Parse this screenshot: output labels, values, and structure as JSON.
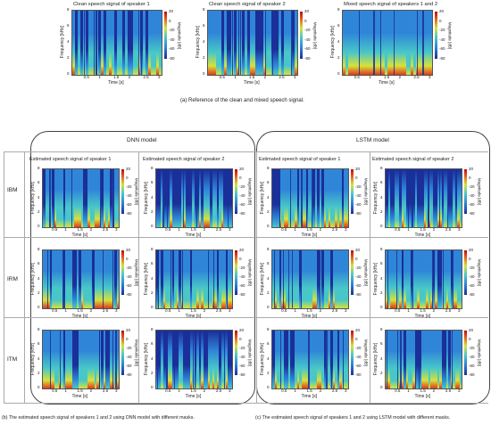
{
  "chart_data": [
    {
      "type": "heatmap",
      "panel_titles": [
        "Clean speech signal of speaker 1",
        "Clean speech signal of speaker 2",
        "Mixed speech signal of speakers 1 and 2"
      ],
      "xlabel": "Time [s]",
      "ylabel": "Frequency [kHz]",
      "xticks": [
        "0.5",
        "1",
        "1.5",
        "2",
        "2.5",
        "3"
      ],
      "yticks": [
        "0",
        "2",
        "4",
        "6",
        "8"
      ],
      "xlim": [
        0,
        3
      ],
      "ylim": [
        0,
        8
      ],
      "colorbar_label": "Magnitude [dB]",
      "colorbar_ticks": [
        "20",
        "0",
        "-20",
        "-40",
        "-60",
        "-80"
      ],
      "colorbar_range": [
        -80,
        20
      ],
      "caption": "(a) Reference of the clean and mixed speech signal."
    },
    {
      "type": "heatmap",
      "model": "DNN model",
      "column_titles": [
        "Estimated speech signal of speaker 1",
        "Estimated speech signal of speaker 2"
      ],
      "rows": [
        "IBM",
        "IRM",
        "ITM"
      ],
      "xlabel": "Time [s]",
      "ylabel": "Frequency [kHz]",
      "xticks": [
        "0.5",
        "1",
        "1.5",
        "2",
        "2.5",
        "3"
      ],
      "yticks": [
        "0",
        "2",
        "4",
        "6",
        "8"
      ],
      "colorbar_label": "Magnitude [dB]",
      "colorbar_ticks": [
        "20",
        "0",
        "-20",
        "-40",
        "-60",
        "-80"
      ],
      "caption": "(b) The estimated speech signal of speakers 1 and 2 using DNN model with different masks."
    },
    {
      "type": "heatmap",
      "model": "LSTM model",
      "column_titles": [
        "Estimated speech signal of speaker 1",
        "Estimated speech signal of speaker 2"
      ],
      "rows": [
        "IBM",
        "IRM",
        "ITM"
      ],
      "xlabel": "Time [s]",
      "ylabel": "Frequency [kHz]",
      "xticks": [
        "0.5",
        "1",
        "1.5",
        "2",
        "2.5",
        "3"
      ],
      "yticks": [
        "0",
        "2",
        "4",
        "6",
        "8"
      ],
      "colorbar_label": "Magnitude [dB]",
      "colorbar_ticks": [
        "20",
        "0",
        "-20",
        "-40",
        "-60",
        "-80"
      ],
      "caption": "(c) The estimated speech signal of speakers 1 and 2 using LSTM model with different masks."
    }
  ],
  "colors": {
    "low": "#1a2f9a",
    "mid_low": "#2f86d8",
    "mid": "#48c7c8",
    "mid_high": "#d6e23a",
    "high": "#e03a1a"
  }
}
